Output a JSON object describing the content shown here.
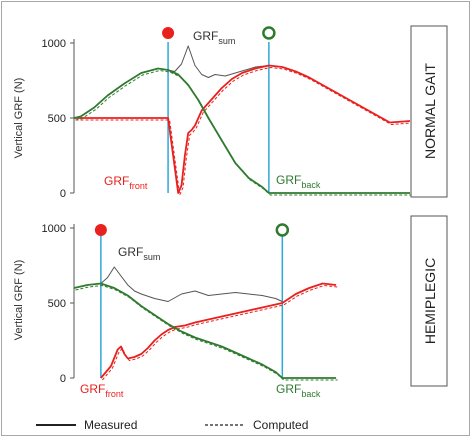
{
  "colors": {
    "front": "#e8201e",
    "back": "#2f7a2f",
    "sum": "#555555",
    "event_line": "#2fa7d8",
    "axis": "#555555"
  },
  "chart_data": [
    {
      "type": "line",
      "panel_label": "NORMAL GAIT",
      "ylabel": "Vertical GRF (N)",
      "yticks": [
        "0",
        "500",
        "1000"
      ],
      "ylim": [
        0,
        1000
      ],
      "xlim": [
        0,
        100
      ],
      "event_markers": [
        {
          "x": 28,
          "symbol": "filled",
          "color": "#e8201e"
        },
        {
          "x": 58,
          "symbol": "open",
          "color": "#2f7a2f"
        }
      ],
      "series": [
        {
          "name": "GRFsum",
          "label_main": "GRF",
          "label_sub": "sum",
          "color": "#555555",
          "x": [
            28,
            30,
            32,
            34,
            36,
            38,
            40,
            42,
            45,
            48,
            51,
            54,
            58
          ],
          "y": [
            820,
            810,
            860,
            980,
            850,
            790,
            770,
            790,
            780,
            800,
            820,
            840,
            850
          ]
        },
        {
          "name": "GRFfront",
          "label_main": "GRF",
          "label_sub": "front",
          "color": "#e8201e",
          "x": [
            0,
            28,
            31,
            32,
            33,
            34,
            35,
            36,
            38,
            40,
            42,
            44,
            47,
            50,
            54,
            58,
            62,
            66,
            70,
            74,
            78,
            82,
            86,
            90,
            94,
            100
          ],
          "y": [
            500,
            500,
            0,
            50,
            250,
            400,
            420,
            450,
            550,
            600,
            650,
            700,
            760,
            800,
            830,
            850,
            840,
            810,
            770,
            720,
            670,
            620,
            570,
            520,
            470,
            480
          ]
        },
        {
          "name": "GRFback",
          "label_main": "GRF",
          "label_sub": "back",
          "color": "#2f7a2f",
          "x": [
            0,
            2,
            6,
            10,
            15,
            20,
            25,
            28,
            31,
            34,
            37,
            40,
            44,
            48,
            52,
            56,
            58,
            100
          ],
          "y": [
            500,
            510,
            570,
            650,
            730,
            800,
            830,
            820,
            790,
            720,
            620,
            500,
            350,
            200,
            100,
            40,
            0,
            0
          ]
        }
      ]
    },
    {
      "type": "line",
      "panel_label": "HEMIPLEGIC",
      "ylabel": "Vertical GRF (N)",
      "yticks": [
        "0",
        "500",
        "1000"
      ],
      "ylim": [
        0,
        1000
      ],
      "xlim": [
        0,
        100
      ],
      "event_markers": [
        {
          "x": 8,
          "symbol": "filled",
          "color": "#e8201e"
        },
        {
          "x": 62,
          "symbol": "open",
          "color": "#2f7a2f"
        }
      ],
      "series": [
        {
          "name": "GRFsum",
          "label_main": "GRF",
          "label_sub": "sum",
          "color": "#555555",
          "x": [
            8,
            10,
            12,
            14,
            16,
            18,
            20,
            24,
            28,
            32,
            36,
            40,
            44,
            48,
            52,
            56,
            60,
            62
          ],
          "y": [
            630,
            670,
            740,
            680,
            620,
            580,
            560,
            530,
            510,
            560,
            580,
            550,
            560,
            570,
            560,
            550,
            530,
            510
          ]
        },
        {
          "name": "GRFfront",
          "label_main": "GRF",
          "label_sub": "front",
          "color": "#e8201e",
          "x": [
            8,
            11,
            13,
            14,
            15,
            16,
            18,
            20,
            22,
            24,
            26,
            28,
            30,
            33,
            36,
            40,
            44,
            48,
            52,
            56,
            60,
            62,
            66,
            70,
            74,
            78
          ],
          "y": [
            0,
            80,
            190,
            210,
            160,
            130,
            140,
            160,
            200,
            250,
            290,
            320,
            340,
            350,
            370,
            390,
            410,
            430,
            450,
            470,
            490,
            500,
            560,
            600,
            630,
            620
          ]
        },
        {
          "name": "GRFback",
          "label_main": "GRF",
          "label_sub": "back",
          "color": "#2f7a2f",
          "x": [
            0,
            4,
            8,
            12,
            16,
            20,
            24,
            28,
            32,
            36,
            40,
            44,
            48,
            52,
            56,
            60,
            62,
            78
          ],
          "y": [
            600,
            620,
            630,
            600,
            550,
            480,
            420,
            360,
            310,
            270,
            240,
            210,
            170,
            130,
            90,
            40,
            0,
            0
          ]
        }
      ]
    }
  ],
  "legend": {
    "measured": "Measured",
    "computed": "Computed"
  }
}
